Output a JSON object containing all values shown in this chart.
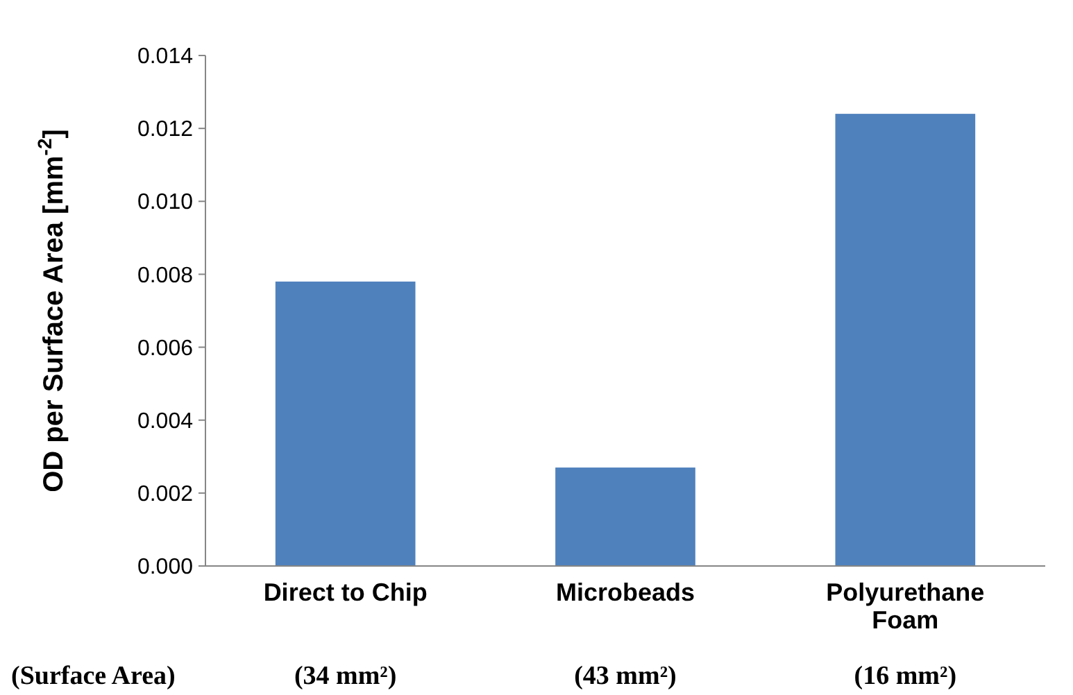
{
  "chart_data": {
    "type": "bar",
    "ylabel": "OD per Surface Area [mm$^{-2}$]",
    "categories": [
      "Direct to Chip",
      "Microbeads",
      "Polyurethane Foam"
    ],
    "values": [
      0.0078,
      0.0027,
      0.0124
    ],
    "color": "#4f81bd",
    "ylim": [
      0,
      0.014
    ],
    "yticks": [
      {
        "value": 0,
        "label": "0.000"
      },
      {
        "value": 0.002,
        "label": "0.002"
      },
      {
        "value": 0.004,
        "label": "0.004"
      },
      {
        "value": 0.006,
        "label": "0.006"
      },
      {
        "value": 0.008,
        "label": "0.008"
      },
      {
        "value": 0.01,
        "label": "0.010"
      },
      {
        "value": 0.012,
        "label": "0.012"
      },
      {
        "value": 0.014,
        "label": "0.014"
      }
    ],
    "annotations": [
      "(Surface Area)",
      "(34 mm²)",
      "(43 mm²)",
      "(16 mm²)"
    ]
  }
}
